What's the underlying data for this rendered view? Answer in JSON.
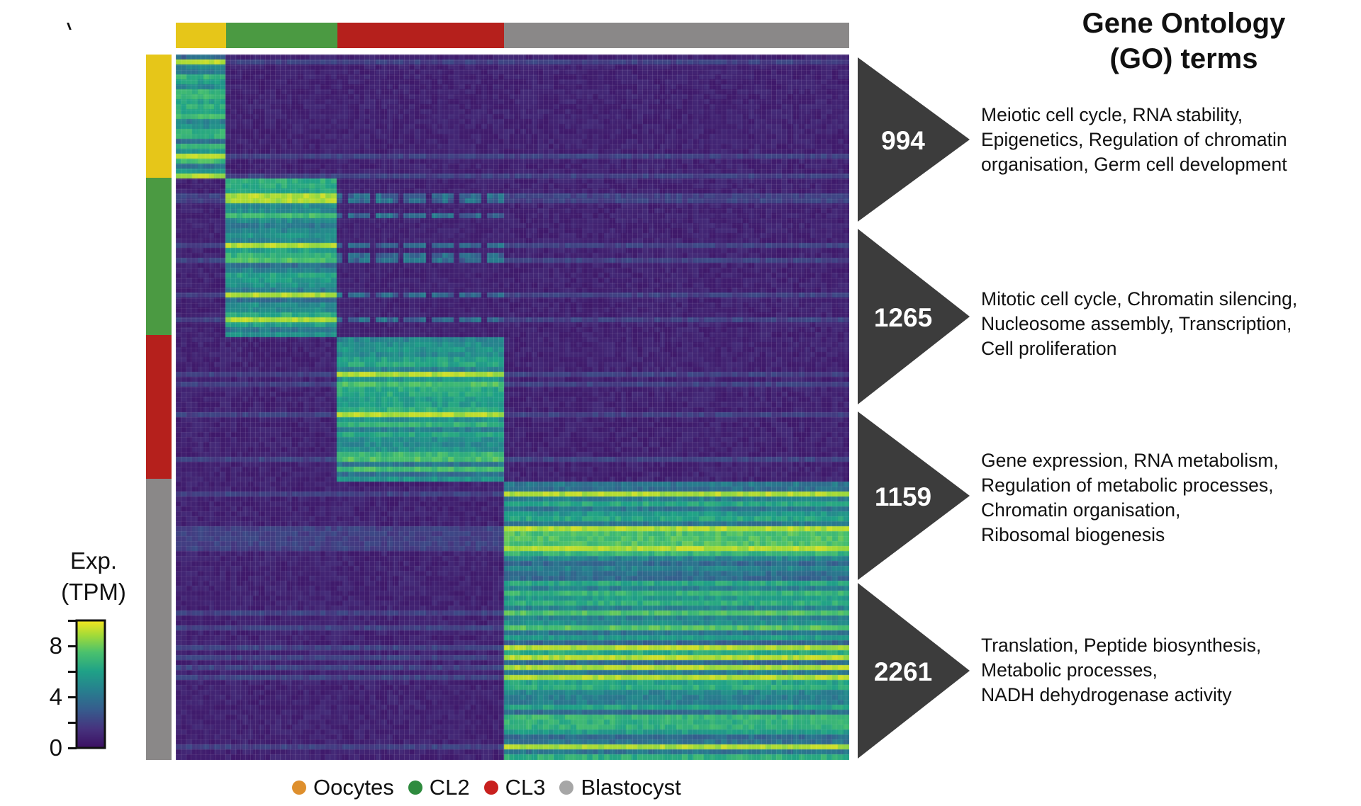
{
  "chart_data": {
    "type": "heatmap",
    "title": "",
    "groups": [
      {
        "name": "Oocytes",
        "color": "#e6c619",
        "columns": 9,
        "gene_count": 994,
        "go_terms": [
          "Meiotic cell cycle, RNA stability,",
          "Epigenetics, Regulation of chromatin",
          "organisation, Germ cell development"
        ]
      },
      {
        "name": "CL2",
        "color": "#4b9a42",
        "columns": 20,
        "gene_count": 1265,
        "go_terms": [
          "Mitotic cell cycle, Chromatin silencing,",
          "Nucleosome assembly, Transcription,",
          "Cell proliferation"
        ]
      },
      {
        "name": "CL3",
        "color": "#b5201c",
        "columns": 30,
        "gene_count": 1159,
        "go_terms": [
          "Gene expression, RNA metabolism,",
          "Regulation of metabolic processes,",
          "Chromatin organisation,",
          "Ribosomal biogenesis"
        ]
      },
      {
        "name": "Blastocyst",
        "color": "#8a8888",
        "columns": 62,
        "gene_count": 2261,
        "go_terms": [
          "Translation, Peptide biosynthesis,",
          "Metabolic processes,",
          "NADH dehydrogenase activity"
        ]
      }
    ],
    "colorbar": {
      "title_line1": "Exp.",
      "title_line2": "(TPM)",
      "range": [
        0,
        10
      ],
      "ticks": [
        {
          "value": 0,
          "label": "0"
        },
        {
          "value": 4,
          "label": "4"
        },
        {
          "value": 8,
          "label": "8"
        }
      ],
      "minor_ticks": [
        2,
        6,
        10
      ],
      "colormap": "viridis"
    },
    "go_title_line1": "Gene Ontology",
    "go_title_line2": "(GO) terms",
    "legend": [
      {
        "label": "Oocytes",
        "color": "#de8f2d"
      },
      {
        "label": "CL2",
        "color": "#2e8b3e"
      },
      {
        "label": "CL3",
        "color": "#c8201e"
      },
      {
        "label": "Blastocyst",
        "color": "#a6a6a6"
      }
    ]
  },
  "colors": {
    "arrow": "#3c3c3c",
    "heat_low": "#3c0f63",
    "heat_high": "#f5e51f"
  }
}
